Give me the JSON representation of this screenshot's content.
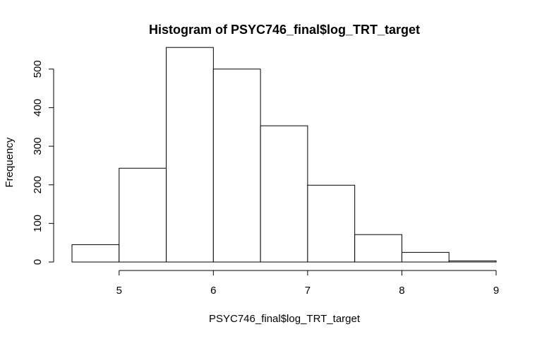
{
  "chart_data": {
    "type": "bar",
    "title": "Histogram of PSYC746_final$log_TRT_target",
    "xlabel": "PSYC746_final$log_TRT_target",
    "ylabel": "Frequency",
    "bins": [
      {
        "start": 4.5,
        "end": 5.0,
        "value": 45
      },
      {
        "start": 5.0,
        "end": 5.5,
        "value": 243
      },
      {
        "start": 5.5,
        "end": 6.0,
        "value": 556
      },
      {
        "start": 6.0,
        "end": 6.5,
        "value": 500
      },
      {
        "start": 6.5,
        "end": 7.0,
        "value": 353
      },
      {
        "start": 7.0,
        "end": 7.5,
        "value": 199
      },
      {
        "start": 7.5,
        "end": 8.0,
        "value": 71
      },
      {
        "start": 8.0,
        "end": 8.5,
        "value": 25
      },
      {
        "start": 8.5,
        "end": 9.0,
        "value": 3
      }
    ],
    "xlim": [
      4.5,
      9.0
    ],
    "ylim": [
      0,
      560
    ],
    "xticks": [
      5,
      6,
      7,
      8,
      9
    ],
    "xtick_labels": [
      "5",
      "6",
      "7",
      "8",
      "9"
    ],
    "yticks": [
      0,
      100,
      200,
      300,
      400,
      500
    ],
    "ytick_labels": [
      "0",
      "100",
      "200",
      "300",
      "400",
      "500"
    ],
    "grid": false,
    "bar_fill": "#ffffff",
    "bar_stroke": "#000000"
  }
}
